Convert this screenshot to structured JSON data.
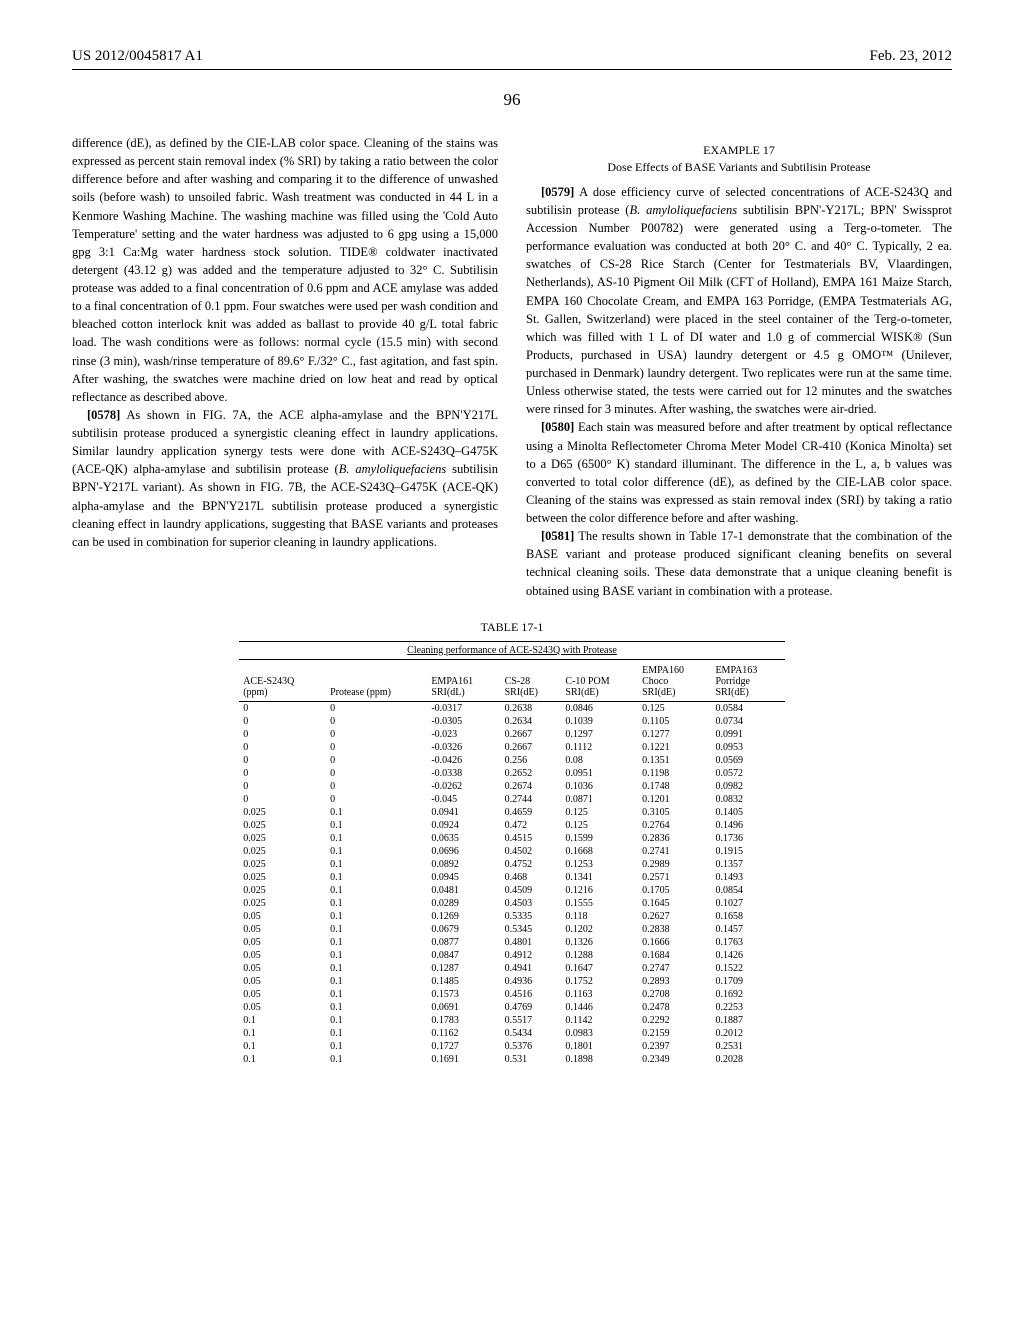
{
  "header": {
    "patent_number": "US 2012/0045817 A1",
    "date": "Feb. 23, 2012"
  },
  "page_number": "96",
  "left_column": {
    "para1": "difference (dE), as defined by the CIE-LAB color space. Cleaning of the stains was expressed as percent stain removal index (% SRI) by taking a ratio between the color difference before and after washing and comparing it to the difference of unwashed soils (before wash) to unsoiled fabric. Wash treatment was conducted in 44 L in a Kenmore Washing Machine. The washing machine was filled using the 'Cold Auto Temperature' setting and the water hardness was adjusted to 6 gpg using a 15,000 gpg 3:1 Ca:Mg water hardness stock solution. TIDE® coldwater inactivated detergent (43.12 g) was added and the temperature adjusted to 32° C. Subtilisin protease was added to a final concentration of 0.6 ppm and ACE amylase was added to a final concentration of 0.1 ppm. Four swatches were used per wash condition and bleached cotton interlock knit was added as ballast to provide 40 g/L total fabric load. The wash conditions were as follows: normal cycle (15.5 min) with second rinse (3 min), wash/rinse temperature of 89.6° F./32° C., fast agitation, and fast spin. After washing, the swatches were machine dried on low heat and read by optical reflectance as described above.",
    "para2_num": "[0578]",
    "para2": "As shown in FIG. 7A, the ACE alpha-amylase and the BPN'Y217L subtilisin protease produced a synergistic cleaning effect in laundry applications. Similar laundry application synergy tests were done with ACE-S243Q–G475K (ACE-QK) alpha-amylase and subtilisin protease (",
    "para2_ital": "B. amyloliquefaciens",
    "para2_cont": " subtilisin BPN'-Y217L variant). As shown in FIG. 7B, the ACE-S243Q–G475K (ACE-QK) alpha-amylase and the BPN'Y217L subtilisin protease produced a synergistic cleaning effect in laundry applications, suggesting that BASE variants and proteases can be used in combination for superior cleaning in laundry applications."
  },
  "right_column": {
    "example_title": "EXAMPLE 17",
    "example_subtitle": "Dose Effects of BASE Variants and Subtilisin Protease",
    "para3_num": "[0579]",
    "para3": "A dose efficiency curve of selected concentrations of ACE-S243Q and subtilisin protease (",
    "para3_ital": "B. amyloliquefaciens",
    "para3_cont": " subtilisin BPN'-Y217L; BPN' Swissprot Accession Number P00782) were generated using a Terg-o-tometer. The performance evaluation was conducted at both 20° C. and 40° C. Typically, 2 ea. swatches of CS-28 Rice Starch (Center for Testmaterials BV, Vlaardingen, Netherlands), AS-10 Pigment Oil Milk (CFT of Holland), EMPA 161 Maize Starch, EMPA 160 Chocolate Cream, and EMPA 163 Porridge, (EMPA Testmaterials AG, St. Gallen, Switzerland) were placed in the steel container of the Terg-o-tometer, which was filled with 1 L of DI water and 1.0 g of commercial WISK® (Sun Products, purchased in USA) laundry detergent or 4.5 g OMO™ (Unilever, purchased in Denmark) laundry detergent. Two replicates were run at the same time. Unless otherwise stated, the tests were carried out for 12 minutes and the swatches were rinsed for 3 minutes. After washing, the swatches were air-dried.",
    "para4_num": "[0580]",
    "para4": "Each stain was measured before and after treatment by optical reflectance using a Minolta Reflectometer Chroma Meter Model CR-410 (Konica Minolta) set to a D65 (6500° K) standard illuminant. The difference in the L, a, b values was converted to total color difference (dE), as defined by the CIE-LAB color space. Cleaning of the stains was expressed as stain removal index (SRI) by taking a ratio between the color difference before and after washing.",
    "para5_num": "[0581]",
    "para5": "The results shown in Table 17-1 demonstrate that the combination of the BASE variant and protease produced significant cleaning benefits on several technical cleaning soils. These data demonstrate that a unique cleaning benefit is obtained using BASE variant in combination with a protease."
  },
  "table": {
    "caption": "TABLE 17-1",
    "title": "Cleaning performance of ACE-S243Q with Protease",
    "columns": [
      "ACE-S243Q\n(ppm)",
      "Protease (ppm)",
      "EMPA161\nSRI(dL)",
      "CS-28\nSRI(dE)",
      "C-10 POM\nSRI(dE)",
      "EMPA160\nChoco\nSRI(dE)",
      "EMPA163\nPorridge\nSRI(dE)"
    ],
    "rows": [
      [
        "0",
        "0",
        "-0.0317",
        "0.2638",
        "0.0846",
        "0.125",
        "0.0584"
      ],
      [
        "0",
        "0",
        "-0.0305",
        "0.2634",
        "0.1039",
        "0.1105",
        "0.0734"
      ],
      [
        "0",
        "0",
        "-0.023",
        "0.2667",
        "0.1297",
        "0.1277",
        "0.0991"
      ],
      [
        "0",
        "0",
        "-0.0326",
        "0.2667",
        "0.1112",
        "0.1221",
        "0.0953"
      ],
      [
        "0",
        "0",
        "-0.0426",
        "0.256",
        "0.08",
        "0.1351",
        "0.0569"
      ],
      [
        "0",
        "0",
        "-0.0338",
        "0.2652",
        "0.0951",
        "0.1198",
        "0.0572"
      ],
      [
        "0",
        "0",
        "-0.0262",
        "0.2674",
        "0.1036",
        "0.1748",
        "0.0982"
      ],
      [
        "0",
        "0",
        "-0.045",
        "0.2744",
        "0.0871",
        "0.1201",
        "0.0832"
      ],
      [
        "0.025",
        "0.1",
        "0.0941",
        "0.4659",
        "0.125",
        "0.3105",
        "0.1405"
      ],
      [
        "0.025",
        "0.1",
        "0.0924",
        "0.472",
        "0.125",
        "0.2764",
        "0.1496"
      ],
      [
        "0.025",
        "0.1",
        "0.0635",
        "0.4515",
        "0.1599",
        "0.2836",
        "0.1736"
      ],
      [
        "0.025",
        "0.1",
        "0.0696",
        "0.4502",
        "0.1668",
        "0.2741",
        "0.1915"
      ],
      [
        "0.025",
        "0.1",
        "0.0892",
        "0.4752",
        "0.1253",
        "0.2989",
        "0.1357"
      ],
      [
        "0.025",
        "0.1",
        "0.0945",
        "0.468",
        "0.1341",
        "0.2571",
        "0.1493"
      ],
      [
        "0.025",
        "0.1",
        "0.0481",
        "0.4509",
        "0.1216",
        "0.1705",
        "0.0854"
      ],
      [
        "0.025",
        "0.1",
        "0.0289",
        "0.4503",
        "0.1555",
        "0.1645",
        "0.1027"
      ],
      [
        "0.05",
        "0.1",
        "0.1269",
        "0.5335",
        "0.118",
        "0.2627",
        "0.1658"
      ],
      [
        "0.05",
        "0.1",
        "0.0679",
        "0.5345",
        "0.1202",
        "0.2838",
        "0.1457"
      ],
      [
        "0.05",
        "0.1",
        "0.0877",
        "0.4801",
        "0.1326",
        "0.1666",
        "0.1763"
      ],
      [
        "0.05",
        "0.1",
        "0.0847",
        "0.4912",
        "0.1288",
        "0.1684",
        "0.1426"
      ],
      [
        "0.05",
        "0.1",
        "0.1287",
        "0.4941",
        "0.1647",
        "0.2747",
        "0.1522"
      ],
      [
        "0.05",
        "0.1",
        "0.1485",
        "0.4936",
        "0.1752",
        "0.2893",
        "0.1709"
      ],
      [
        "0.05",
        "0.1",
        "0.1573",
        "0.4516",
        "0.1163",
        "0.2708",
        "0.1692"
      ],
      [
        "0.05",
        "0.1",
        "0.0691",
        "0.4769",
        "0.1446",
        "0.2478",
        "0.2253"
      ],
      [
        "0.1",
        "0.1",
        "0.1783",
        "0.5517",
        "0.1142",
        "0.2292",
        "0.1887"
      ],
      [
        "0.1",
        "0.1",
        "0.1162",
        "0.5434",
        "0.0983",
        "0.2159",
        "0.2012"
      ],
      [
        "0.1",
        "0.1",
        "0.1727",
        "0.5376",
        "0.1801",
        "0.2397",
        "0.2531"
      ],
      [
        "0.1",
        "0.1",
        "0.1691",
        "0.531",
        "0.1898",
        "0.2349",
        "0.2028"
      ]
    ]
  }
}
